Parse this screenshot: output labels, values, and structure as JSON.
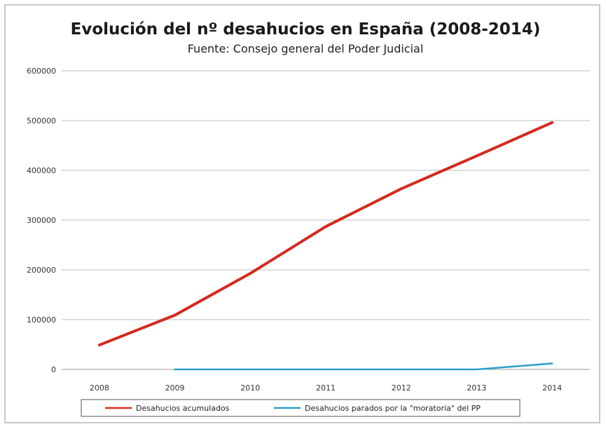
{
  "chart_data": {
    "type": "line",
    "title": "Evolución del nº desahucios en España (2008-2014)",
    "subtitle": "Fuente: Consejo general del Poder Judicial",
    "xlabel": "",
    "ylabel": "",
    "categories": [
      "2008",
      "2009",
      "2010",
      "2011",
      "2012",
      "2013",
      "2014"
    ],
    "y_ticks": [
      "0",
      "100000",
      "200000",
      "300000",
      "400000",
      "500000",
      "600000"
    ],
    "ylim": [
      0,
      600000
    ],
    "grid": true,
    "legend_position": "bottom",
    "series": [
      {
        "name": "Desahucios acumulados",
        "color": "#d42a1e",
        "values": [
          49000,
          109000,
          193000,
          287000,
          363000,
          429000,
          496000
        ]
      },
      {
        "name": "Desahucios parados por la \"moratoria\" del PP",
        "color": "#2e9fc9",
        "values": [
          null,
          0,
          0,
          0,
          0,
          0,
          12000
        ]
      }
    ]
  }
}
